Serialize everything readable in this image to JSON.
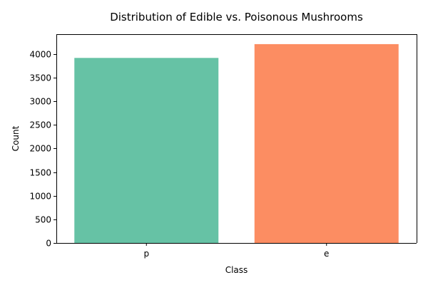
{
  "chart_data": {
    "type": "bar",
    "title": "Distribution of Edible vs. Poisonous Mushrooms",
    "xlabel": "Class",
    "ylabel": "Count",
    "categories": [
      "p",
      "e"
    ],
    "values": [
      3916,
      4208
    ],
    "colors": [
      "#66c2a5",
      "#fc8d62"
    ],
    "ylim": [
      0,
      4418
    ],
    "yticks": [
      0,
      500,
      1000,
      1500,
      2000,
      2500,
      3000,
      3500,
      4000
    ],
    "grid": false,
    "legend": "none"
  }
}
